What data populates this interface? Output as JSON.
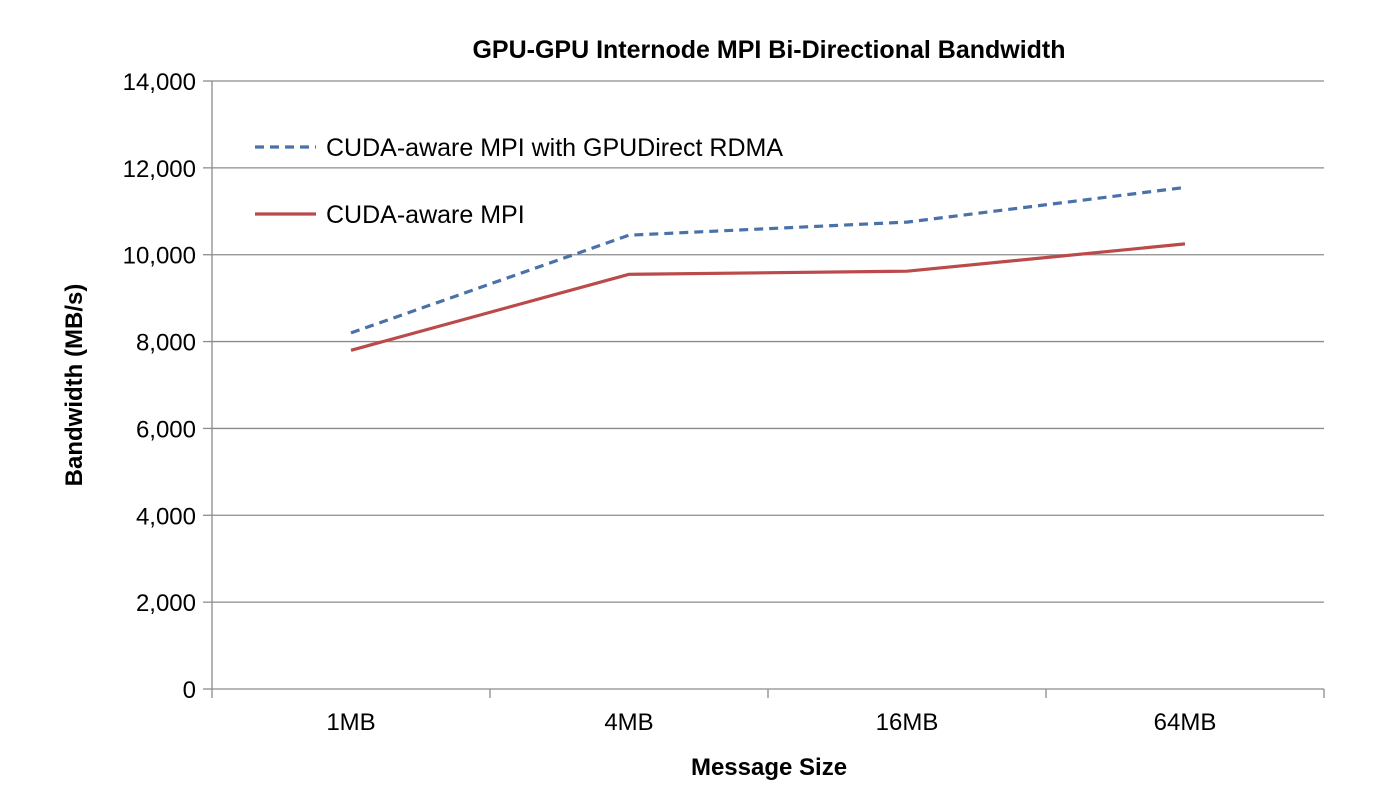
{
  "chart_data": {
    "type": "line",
    "title": "GPU-GPU Internode MPI Bi-Directional Bandwidth",
    "xlabel": "Message Size",
    "ylabel": "Bandwidth (MB/s)",
    "categories": [
      "1MB",
      "4MB",
      "16MB",
      "64MB"
    ],
    "ylim": [
      0,
      14000
    ],
    "yticks": [
      0,
      2000,
      4000,
      6000,
      8000,
      10000,
      12000,
      14000
    ],
    "ytick_labels": [
      "0",
      "2,000",
      "4,000",
      "6,000",
      "8,000",
      "10,000",
      "12,000",
      "14,000"
    ],
    "grid": true,
    "legend_position": "top-left inside plot",
    "series": [
      {
        "name": "CUDA-aware MPI with GPUDirect RDMA",
        "values": [
          8200,
          10450,
          10750,
          11550
        ],
        "color": "#4a72a8",
        "line_style": "dashed"
      },
      {
        "name": "CUDA-aware MPI",
        "values": [
          7800,
          9550,
          9620,
          10250
        ],
        "color": "#bb4a4a",
        "line_style": "solid"
      }
    ]
  }
}
